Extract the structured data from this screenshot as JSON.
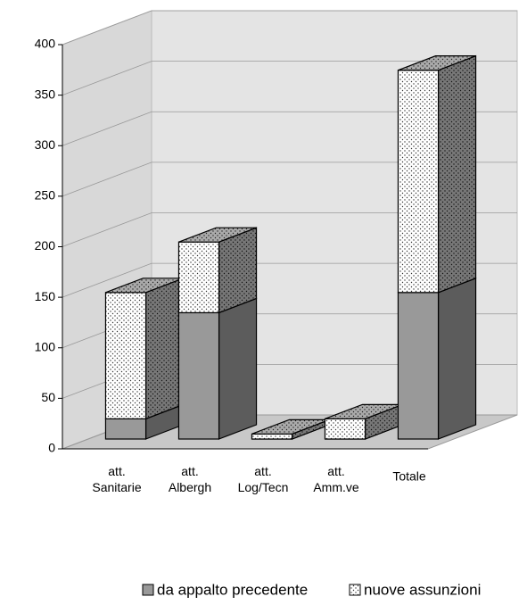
{
  "chart_data": {
    "type": "bar3d_stacked",
    "categories": [
      "att. Sanitarie",
      "att. Albergh",
      "att. Log/Tecn",
      "att. Amm.ve",
      "Totale"
    ],
    "series": [
      {
        "name": "da appalto precedente",
        "color": "#999999",
        "values": [
          20,
          125,
          0,
          0,
          145
        ]
      },
      {
        "name": "nuove assunzioni",
        "color": "#ffffff",
        "pattern": "dots",
        "values": [
          125,
          70,
          5,
          20,
          220
        ]
      }
    ],
    "ylim": [
      0,
      400
    ],
    "yticks": [
      0,
      50,
      100,
      150,
      200,
      250,
      300,
      350,
      400
    ],
    "grid": true,
    "legend": "bottom"
  }
}
